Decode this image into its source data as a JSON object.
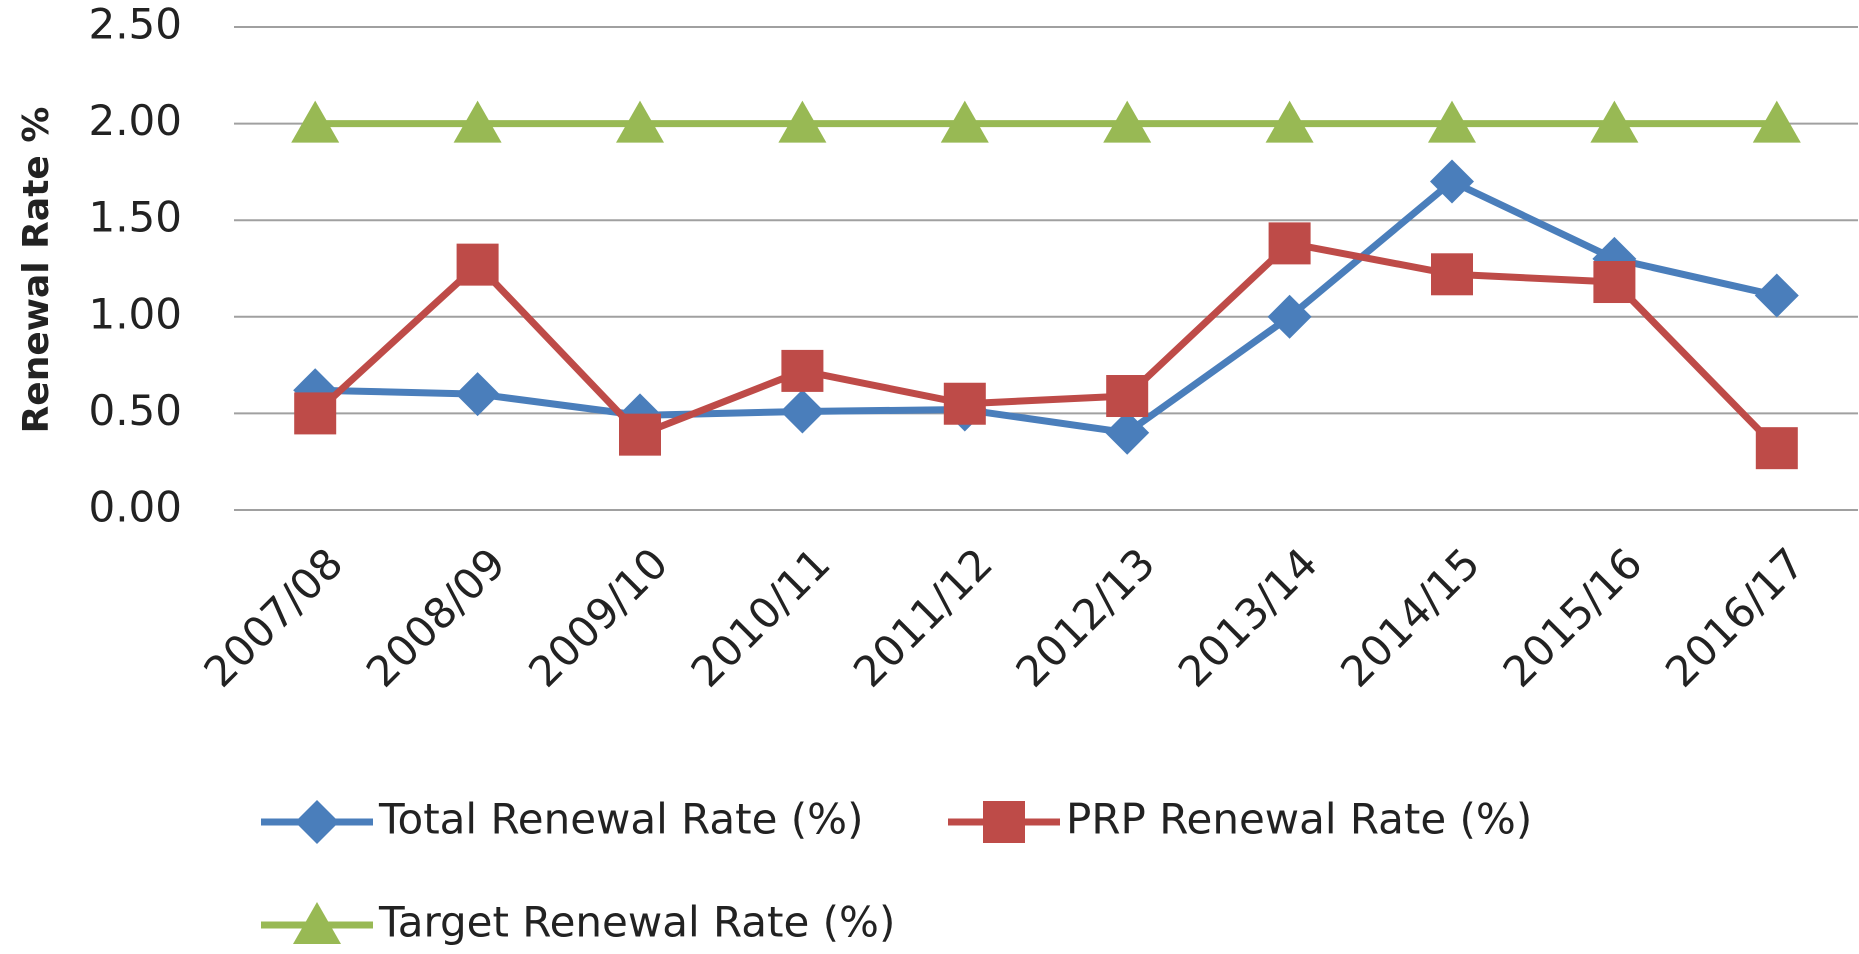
{
  "chart_data": {
    "type": "line",
    "y_label": "Renewal Rate %",
    "categories": [
      "2007/08",
      "2008/09",
      "2009/10",
      "2010/11",
      "2011/12",
      "2012/13",
      "2013/14",
      "2014/15",
      "2015/16",
      "2016/17"
    ],
    "series": [
      {
        "name": "Total Renewal Rate (%)",
        "color": "#4a7ebb",
        "marker": "diamond",
        "values": [
          0.62,
          0.6,
          0.49,
          0.51,
          0.52,
          0.4,
          1.0,
          1.7,
          1.3,
          1.11
        ]
      },
      {
        "name": "PRP Renewal Rate (%)",
        "color": "#be4b48",
        "marker": "square",
        "values": [
          0.5,
          1.27,
          0.39,
          0.72,
          0.55,
          0.59,
          1.38,
          1.22,
          1.18,
          0.32
        ]
      },
      {
        "name": "Target Renewal Rate (%)",
        "color": "#98b954",
        "marker": "triangle",
        "values": [
          2.0,
          2.0,
          2.0,
          2.0,
          2.0,
          2.0,
          2.0,
          2.0,
          2.0,
          2.0
        ]
      }
    ],
    "ylim": [
      0,
      2.5
    ],
    "yticks": [
      {
        "value": 0,
        "label": "0.00"
      },
      {
        "value": 0.5,
        "label": "0.50"
      },
      {
        "value": 1,
        "label": "1.00"
      },
      {
        "value": 1.5,
        "label": "1.50"
      },
      {
        "value": 2,
        "label": "2.00"
      },
      {
        "value": 2.5,
        "label": "2.50"
      }
    ],
    "grid": true,
    "legend": "bottom"
  }
}
